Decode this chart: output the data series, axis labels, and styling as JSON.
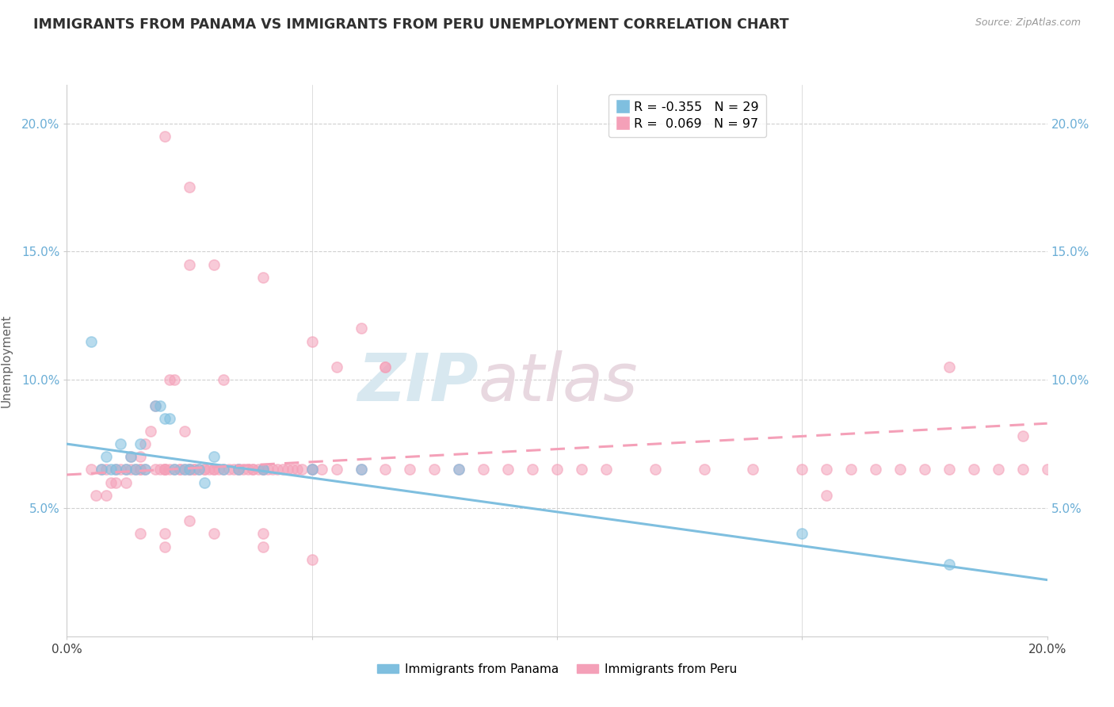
{
  "title": "IMMIGRANTS FROM PANAMA VS IMMIGRANTS FROM PERU UNEMPLOYMENT CORRELATION CHART",
  "source_text": "Source: ZipAtlas.com",
  "ylabel": "Unemployment",
  "xlim": [
    0.0,
    0.2
  ],
  "ylim": [
    0.0,
    0.215
  ],
  "ytick_values": [
    0.05,
    0.1,
    0.15,
    0.2
  ],
  "xtick_values": [
    0.0,
    0.05,
    0.1,
    0.15,
    0.2
  ],
  "legend_r_panama": "R = -0.355",
  "legend_n_panama": "N = 29",
  "legend_r_peru": "R =  0.069",
  "legend_n_peru": "N = 97",
  "color_panama": "#7fbfdf",
  "color_peru": "#f4a0b8",
  "panama_scatter_x": [
    0.005,
    0.007,
    0.008,
    0.009,
    0.01,
    0.011,
    0.012,
    0.013,
    0.014,
    0.015,
    0.016,
    0.018,
    0.019,
    0.02,
    0.021,
    0.022,
    0.024,
    0.025,
    0.027,
    0.028,
    0.03,
    0.032,
    0.035,
    0.04,
    0.05,
    0.06,
    0.08,
    0.15,
    0.18
  ],
  "panama_scatter_y": [
    0.115,
    0.065,
    0.07,
    0.065,
    0.065,
    0.075,
    0.065,
    0.07,
    0.065,
    0.075,
    0.065,
    0.09,
    0.09,
    0.085,
    0.085,
    0.065,
    0.065,
    0.065,
    0.065,
    0.06,
    0.07,
    0.065,
    0.065,
    0.065,
    0.065,
    0.065,
    0.065,
    0.04,
    0.028
  ],
  "peru_scatter_x": [
    0.005,
    0.006,
    0.007,
    0.008,
    0.008,
    0.009,
    0.01,
    0.01,
    0.011,
    0.012,
    0.012,
    0.013,
    0.013,
    0.014,
    0.015,
    0.015,
    0.015,
    0.016,
    0.016,
    0.017,
    0.018,
    0.018,
    0.019,
    0.02,
    0.02,
    0.02,
    0.021,
    0.021,
    0.022,
    0.022,
    0.023,
    0.023,
    0.024,
    0.024,
    0.025,
    0.025,
    0.026,
    0.026,
    0.027,
    0.028,
    0.028,
    0.029,
    0.03,
    0.03,
    0.031,
    0.032,
    0.032,
    0.033,
    0.034,
    0.035,
    0.035,
    0.036,
    0.037,
    0.038,
    0.038,
    0.039,
    0.04,
    0.04,
    0.041,
    0.042,
    0.043,
    0.044,
    0.045,
    0.046,
    0.047,
    0.048,
    0.05,
    0.05,
    0.052,
    0.055,
    0.06,
    0.065,
    0.07,
    0.075,
    0.08,
    0.085,
    0.09,
    0.095,
    0.1,
    0.105,
    0.11,
    0.12,
    0.13,
    0.14,
    0.15,
    0.155,
    0.16,
    0.165,
    0.17,
    0.175,
    0.18,
    0.185,
    0.19,
    0.195,
    0.2,
    0.04,
    0.06
  ],
  "peru_scatter_y": [
    0.065,
    0.055,
    0.065,
    0.055,
    0.065,
    0.06,
    0.065,
    0.06,
    0.065,
    0.065,
    0.06,
    0.065,
    0.07,
    0.065,
    0.065,
    0.07,
    0.065,
    0.065,
    0.075,
    0.08,
    0.065,
    0.09,
    0.065,
    0.065,
    0.065,
    0.065,
    0.065,
    0.1,
    0.1,
    0.065,
    0.065,
    0.065,
    0.065,
    0.08,
    0.065,
    0.065,
    0.065,
    0.065,
    0.065,
    0.065,
    0.065,
    0.065,
    0.065,
    0.065,
    0.065,
    0.065,
    0.1,
    0.065,
    0.065,
    0.065,
    0.065,
    0.065,
    0.065,
    0.065,
    0.065,
    0.065,
    0.065,
    0.065,
    0.065,
    0.065,
    0.065,
    0.065,
    0.065,
    0.065,
    0.065,
    0.065,
    0.065,
    0.065,
    0.065,
    0.065,
    0.065,
    0.065,
    0.065,
    0.065,
    0.065,
    0.065,
    0.065,
    0.065,
    0.065,
    0.065,
    0.065,
    0.065,
    0.065,
    0.065,
    0.065,
    0.065,
    0.065,
    0.065,
    0.065,
    0.065,
    0.065,
    0.065,
    0.065,
    0.065,
    0.065,
    0.14,
    0.12
  ],
  "peru_outlier_x": [
    0.02,
    0.025,
    0.025,
    0.03,
    0.05,
    0.055,
    0.065,
    0.065,
    0.18,
    0.195,
    0.155,
    0.025,
    0.02,
    0.015,
    0.02,
    0.03,
    0.04,
    0.04,
    0.05
  ],
  "peru_outlier_y": [
    0.195,
    0.175,
    0.145,
    0.145,
    0.115,
    0.105,
    0.105,
    0.105,
    0.105,
    0.078,
    0.055,
    0.045,
    0.035,
    0.04,
    0.04,
    0.04,
    0.04,
    0.035,
    0.03
  ],
  "panama_line_x": [
    0.0,
    0.2
  ],
  "panama_line_y": [
    0.075,
    0.022
  ],
  "peru_line_x": [
    0.0,
    0.2
  ],
  "peru_line_y": [
    0.063,
    0.083
  ],
  "background_color": "#ffffff",
  "grid_color": "#d0d0d0",
  "title_color": "#303030",
  "axis_label_color": "#606060",
  "right_tick_color": "#6baed6",
  "left_tick_color": "#6baed6"
}
